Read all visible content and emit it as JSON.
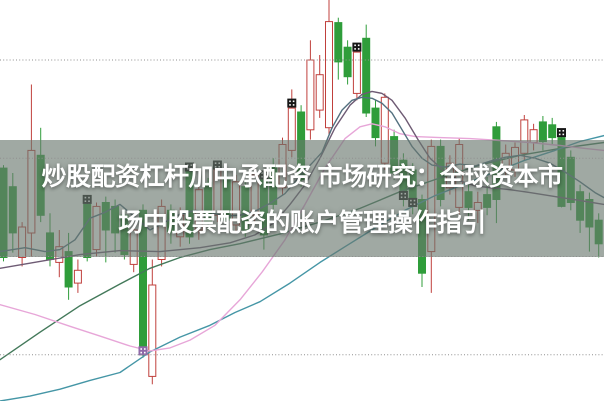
{
  "banner": {
    "line1": "炒股配资杠杆加中承配资 市场研究：全球资本市",
    "line2": "场中股票配资的账户管理操作指引",
    "overlay_color": "rgba(104,119,110,0.63)",
    "text_color": "#ffffff"
  },
  "chart_data": {
    "type": "candlestick",
    "title": "",
    "xlabel": "",
    "ylabel": "",
    "ylim": [
      3053,
      3461
    ],
    "gridlines": [
      3400,
      3300,
      3200,
      3100
    ],
    "grid_color": "#8f8f8f",
    "up_color": "#c0403c",
    "down_color": "#2f9d3a",
    "marker_colors": {
      "black": "#161616",
      "purple": "#8f6aa8"
    },
    "candles": [
      [
        3290,
        3293,
        3195,
        3199
      ],
      [
        3271,
        3285,
        3204,
        3224
      ],
      [
        3199,
        3235,
        3190,
        3230
      ],
      [
        3224,
        3375,
        3200,
        3308
      ],
      [
        3303,
        3331,
        3235,
        3242
      ],
      [
        3224,
        3244,
        3190,
        3197
      ],
      [
        3194,
        3227,
        3179,
        3210
      ],
      [
        3205,
        3224,
        3156,
        3169
      ],
      [
        3173,
        3197,
        3163,
        3186
      ],
      [
        3253,
        3258,
        3195,
        3199,
        "t"
      ],
      [
        3207,
        3255,
        3200,
        3251
      ],
      [
        3255,
        3261,
        3194,
        3227
      ],
      [
        3251,
        3258,
        3204,
        3224
      ],
      [
        3242,
        3247,
        3197,
        3202
      ],
      [
        3192,
        3232,
        3184,
        3227
      ],
      [
        3247,
        3253,
        3097,
        3100,
        "pb"
      ],
      [
        3078,
        3197,
        3070,
        3171
      ],
      [
        3197,
        3258,
        3190,
        3251
      ],
      [
        3247,
        3253,
        3213,
        3225
      ],
      [
        3220,
        3250,
        3210,
        3242
      ],
      [
        3286,
        3290,
        3213,
        3220,
        "t"
      ],
      [
        3227,
        3273,
        3217,
        3268
      ],
      [
        3275,
        3280,
        3227,
        3234
      ],
      [
        3242,
        3295,
        3235,
        3288,
        "t"
      ],
      [
        3281,
        3288,
        3230,
        3237
      ],
      [
        3232,
        3283,
        3225,
        3276
      ],
      [
        3271,
        3278,
        3220,
        3227
      ],
      [
        3242,
        3290,
        3235,
        3283
      ],
      [
        3278,
        3285,
        3207,
        3222,
        "t"
      ],
      [
        3293,
        3300,
        3245,
        3253
      ],
      [
        3270,
        3321,
        3263,
        3314
      ],
      [
        3308,
        3370,
        3301,
        3351,
        "t"
      ],
      [
        3347,
        3354,
        3271,
        3278
      ],
      [
        3329,
        3420,
        3319,
        3400
      ],
      [
        3349,
        3405,
        3341,
        3385
      ],
      [
        3331,
        3461,
        3324,
        3439
      ],
      [
        3438,
        3443,
        3380,
        3398
      ],
      [
        3413,
        3420,
        3375,
        3383
      ],
      [
        3366,
        3415,
        3359,
        3408,
        "t"
      ],
      [
        3422,
        3436,
        3342,
        3346
      ],
      [
        3351,
        3359,
        3312,
        3321
      ],
      [
        3295,
        3366,
        3288,
        3362
      ],
      [
        3322,
        3329,
        3278,
        3285
      ],
      [
        3298,
        3305,
        3251,
        3258,
        "b"
      ],
      [
        3288,
        3295,
        3243,
        3251,
        "b"
      ],
      [
        3258,
        3263,
        3169,
        3183
      ],
      [
        3205,
        3319,
        3163,
        3312
      ],
      [
        3312,
        3319,
        3251,
        3258
      ],
      [
        3270,
        3303,
        3263,
        3295
      ],
      [
        3250,
        3321,
        3242,
        3314
      ],
      [
        3266,
        3283,
        3237,
        3250
      ],
      [
        3247,
        3266,
        3234,
        3255
      ],
      [
        3263,
        3281,
        3242,
        3250
      ],
      [
        3332,
        3337,
        3234,
        3258
      ],
      [
        3288,
        3314,
        3281,
        3305
      ],
      [
        3288,
        3316,
        3281,
        3311
      ],
      [
        3305,
        3344,
        3298,
        3339
      ],
      [
        3316,
        3335,
        3308,
        3329
      ],
      [
        3337,
        3343,
        3308,
        3317
      ],
      [
        3334,
        3341,
        3314,
        3321
      ],
      [
        3321,
        3324,
        3250,
        3251,
        "t"
      ],
      [
        3301,
        3308,
        3247,
        3255
      ],
      [
        3266,
        3273,
        3224,
        3237
      ],
      [
        3258,
        3265,
        3205,
        3230
      ],
      [
        3237,
        3244,
        3199,
        3213
      ]
    ],
    "ma_lines": [
      {
        "name": "ma-long-green",
        "color": "#43795a",
        "points": [
          [
            0,
            3095
          ],
          [
            40,
            3123
          ],
          [
            80,
            3150
          ],
          [
            120,
            3172
          ],
          [
            150,
            3188
          ],
          [
            180,
            3199
          ],
          [
            210,
            3207
          ],
          [
            240,
            3213
          ],
          [
            280,
            3223
          ],
          [
            320,
            3235
          ],
          [
            360,
            3249
          ],
          [
            400,
            3266
          ],
          [
            440,
            3280
          ],
          [
            480,
            3293
          ],
          [
            520,
            3303
          ],
          [
            560,
            3310
          ],
          [
            604,
            3316
          ]
        ]
      },
      {
        "name": "ma-longest-cyan",
        "color": "#4596a6",
        "points": [
          [
            0,
            3053
          ],
          [
            30,
            3058
          ],
          [
            60,
            3065
          ],
          [
            90,
            3074
          ],
          [
            120,
            3082
          ],
          [
            150,
            3103
          ],
          [
            180,
            3118
          ],
          [
            210,
            3130
          ],
          [
            235,
            3143
          ],
          [
            260,
            3154
          ],
          [
            290,
            3173
          ],
          [
            320,
            3194
          ],
          [
            345,
            3210
          ],
          [
            375,
            3229
          ],
          [
            405,
            3247
          ],
          [
            435,
            3262
          ],
          [
            465,
            3274
          ],
          [
            495,
            3286
          ],
          [
            525,
            3298
          ],
          [
            555,
            3308
          ],
          [
            580,
            3317
          ],
          [
            604,
            3323
          ]
        ]
      },
      {
        "name": "ma-mid-pink",
        "color": "#e7a6d8",
        "points": [
          [
            0,
            3151
          ],
          [
            35,
            3141
          ],
          [
            70,
            3129
          ],
          [
            100,
            3119
          ],
          [
            130,
            3109
          ],
          [
            150,
            3104
          ],
          [
            170,
            3107
          ],
          [
            190,
            3115
          ],
          [
            215,
            3130
          ],
          [
            240,
            3156
          ],
          [
            262,
            3184
          ],
          [
            285,
            3217
          ],
          [
            305,
            3253
          ],
          [
            325,
            3290
          ],
          [
            345,
            3320
          ],
          [
            360,
            3332
          ],
          [
            372,
            3335
          ],
          [
            385,
            3332
          ],
          [
            400,
            3325
          ],
          [
            415,
            3322
          ],
          [
            440,
            3321
          ],
          [
            470,
            3320
          ],
          [
            500,
            3318
          ],
          [
            530,
            3316
          ],
          [
            560,
            3313
          ],
          [
            585,
            3310
          ],
          [
            604,
            3308
          ]
        ]
      },
      {
        "name": "ma-mid-mauve",
        "color": "#6e5b74",
        "points": [
          [
            0,
            3188
          ],
          [
            40,
            3195
          ],
          [
            80,
            3202
          ],
          [
            120,
            3206
          ],
          [
            160,
            3205
          ],
          [
            200,
            3209
          ],
          [
            230,
            3214
          ],
          [
            255,
            3222
          ],
          [
            275,
            3235
          ],
          [
            290,
            3253
          ],
          [
            305,
            3273
          ],
          [
            320,
            3300
          ],
          [
            335,
            3331
          ],
          [
            350,
            3354
          ],
          [
            362,
            3365
          ],
          [
            372,
            3368
          ],
          [
            382,
            3366
          ],
          [
            392,
            3359
          ],
          [
            405,
            3341
          ],
          [
            418,
            3319
          ],
          [
            430,
            3300
          ],
          [
            445,
            3286
          ],
          [
            460,
            3277
          ],
          [
            475,
            3272
          ],
          [
            490,
            3270
          ],
          [
            510,
            3268
          ],
          [
            530,
            3265
          ],
          [
            555,
            3261
          ],
          [
            580,
            3257
          ],
          [
            604,
            3253
          ]
        ]
      },
      {
        "name": "ma-short-slate",
        "color": "#53707f",
        "points": [
          [
            0,
            3205
          ],
          [
            25,
            3209
          ],
          [
            45,
            3205
          ],
          [
            60,
            3207
          ],
          [
            75,
            3217
          ],
          [
            90,
            3239
          ],
          [
            105,
            3245
          ],
          [
            120,
            3253
          ],
          [
            135,
            3240
          ],
          [
            150,
            3227
          ],
          [
            165,
            3235
          ],
          [
            180,
            3243
          ],
          [
            195,
            3247
          ],
          [
            210,
            3245
          ],
          [
            225,
            3241
          ],
          [
            240,
            3242
          ],
          [
            255,
            3246
          ],
          [
            270,
            3254
          ],
          [
            285,
            3264
          ],
          [
            300,
            3282
          ],
          [
            312,
            3295
          ],
          [
            322,
            3306
          ],
          [
            332,
            3331
          ],
          [
            342,
            3349
          ],
          [
            352,
            3359
          ],
          [
            362,
            3362
          ],
          [
            372,
            3361
          ],
          [
            382,
            3356
          ],
          [
            392,
            3346
          ],
          [
            402,
            3329
          ],
          [
            412,
            3312
          ],
          [
            422,
            3300
          ],
          [
            432,
            3293
          ],
          [
            445,
            3291
          ],
          [
            460,
            3294
          ],
          [
            475,
            3292
          ],
          [
            490,
            3297
          ],
          [
            505,
            3301
          ],
          [
            520,
            3303
          ],
          [
            535,
            3300
          ],
          [
            550,
            3295
          ],
          [
            565,
            3286
          ],
          [
            580,
            3276
          ],
          [
            595,
            3265
          ],
          [
            604,
            3260
          ]
        ]
      }
    ]
  }
}
